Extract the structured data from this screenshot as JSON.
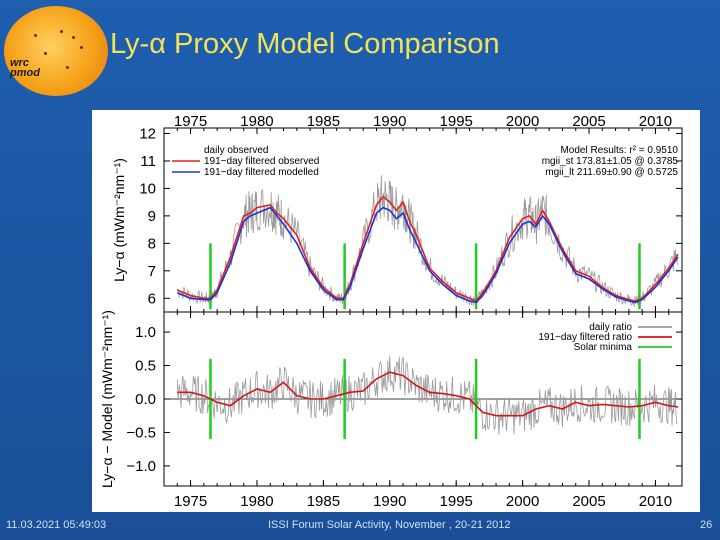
{
  "slide": {
    "title": "Ly-α Proxy Model Comparison",
    "footer_left": "11.03.2021 05:49:03",
    "footer_center": "ISSI Forum Solar Activity, November , 20-21 2012",
    "footer_right": "26",
    "logo_text_1": "wrc",
    "logo_text_2": "pmod"
  },
  "colors": {
    "observed_filtered": "#e02020",
    "modelled_filtered": "#2030d8",
    "daily": "#9a9a9a",
    "minima": "#22cc22",
    "ratio_filtered": "#d01818"
  },
  "chart_data": [
    {
      "type": "line",
      "panel": "top",
      "ylabel": "Ly−α (mWm⁻²nm⁻¹)",
      "ylim": [
        5.5,
        12.2
      ],
      "xlim": [
        1973,
        2012
      ],
      "x_ticks": [
        "1975",
        "1980",
        "1985",
        "1990",
        "1995",
        "2000",
        "2005",
        "2010"
      ],
      "y_ticks": [
        "6",
        "7",
        "8",
        "9",
        "10",
        "11",
        "12"
      ],
      "legend": [
        "daily observed",
        "191−day filtered observed",
        "191−day filtered modelled"
      ],
      "legend_placement": "top-left",
      "annotation": [
        "Model Results: r² = 0.9510",
        "mgii_st 173.81±1.05 @ 0.3785",
        "mgii_lt 211.69±0.90 @ 0.5725"
      ],
      "x": [
        1974,
        1975,
        1976,
        1976.5,
        1977,
        1978,
        1979,
        1979.5,
        1980,
        1981,
        1981.5,
        1982,
        1983,
        1984,
        1985,
        1986,
        1986.5,
        1987,
        1988,
        1989,
        1989.5,
        1990,
        1990.5,
        1991,
        1991.5,
        1992,
        1993,
        1994,
        1995,
        1996,
        1996.5,
        1997,
        1998,
        1999,
        2000,
        2000.5,
        2001,
        2001.5,
        2002,
        2003,
        2004,
        2005,
        2006,
        2007,
        2008,
        2008.5,
        2009,
        2010,
        2011,
        2011.7
      ],
      "series": [
        {
          "name": "191−day filtered observed",
          "values": [
            6.3,
            6.1,
            6.0,
            6.0,
            6.3,
            7.5,
            9.0,
            9.1,
            9.3,
            9.4,
            9.1,
            8.9,
            8.3,
            7.1,
            6.4,
            6.0,
            6.0,
            6.5,
            8.0,
            9.4,
            9.7,
            9.5,
            9.2,
            9.5,
            8.8,
            8.3,
            7.1,
            6.6,
            6.2,
            6.0,
            5.9,
            6.2,
            7.0,
            8.2,
            8.9,
            9.0,
            8.7,
            9.2,
            8.8,
            7.8,
            7.0,
            6.8,
            6.4,
            6.1,
            5.95,
            5.9,
            6.0,
            6.5,
            7.1,
            7.6
          ]
        },
        {
          "name": "191−day filtered modelled",
          "values": [
            6.2,
            6.0,
            5.95,
            5.95,
            6.2,
            7.3,
            8.8,
            9.0,
            9.1,
            9.3,
            9.0,
            8.7,
            8.0,
            7.0,
            6.3,
            5.95,
            5.95,
            6.4,
            7.8,
            9.1,
            9.3,
            9.2,
            8.9,
            9.1,
            8.5,
            8.0,
            7.0,
            6.5,
            6.1,
            5.9,
            5.85,
            6.1,
            6.9,
            8.0,
            8.7,
            8.8,
            8.6,
            9.0,
            8.7,
            7.7,
            6.9,
            6.7,
            6.35,
            6.05,
            5.9,
            5.85,
            5.95,
            6.4,
            7.0,
            7.5
          ]
        }
      ],
      "solar_minima": [
        1976.5,
        1986.6,
        1996.5,
        2008.8
      ]
    },
    {
      "type": "line",
      "panel": "bottom",
      "ylabel": "Ly−α − Model (mWm⁻²nm⁻¹)",
      "ylim": [
        -1.3,
        1.3
      ],
      "xlim": [
        1973,
        2012
      ],
      "x_ticks": [
        "1975",
        "1980",
        "1985",
        "1990",
        "1995",
        "2000",
        "2005",
        "2010"
      ],
      "y_ticks": [
        "1.0",
        "0.5",
        "0.0",
        "−0.5",
        "−1.0"
      ],
      "legend": [
        "daily ratio",
        "191−day filtered ratio",
        "Solar minima"
      ],
      "legend_placement": "top-right",
      "x": [
        1974,
        1975,
        1976,
        1977,
        1978,
        1979,
        1980,
        1981,
        1982,
        1983,
        1984,
        1985,
        1986,
        1987,
        1988,
        1989,
        1990,
        1991,
        1992,
        1993,
        1994,
        1995,
        1996,
        1997,
        1998,
        1999,
        2000,
        2001,
        2002,
        2003,
        2004,
        2005,
        2006,
        2007,
        2008,
        2009,
        2010,
        2011,
        2011.7
      ],
      "series": [
        {
          "name": "191−day filtered ratio",
          "values": [
            0.1,
            0.1,
            0.05,
            -0.05,
            -0.1,
            0.05,
            0.15,
            0.1,
            0.25,
            0.05,
            0.0,
            0.0,
            0.05,
            0.1,
            0.12,
            0.3,
            0.4,
            0.35,
            0.2,
            0.1,
            0.08,
            0.05,
            0.0,
            -0.2,
            -0.25,
            -0.25,
            -0.25,
            -0.15,
            -0.1,
            -0.15,
            -0.05,
            -0.1,
            -0.08,
            -0.1,
            -0.12,
            -0.1,
            -0.05,
            -0.1,
            -0.12
          ]
        }
      ],
      "solar_minima": [
        1976.5,
        1986.6,
        1996.5,
        2008.8
      ]
    }
  ]
}
